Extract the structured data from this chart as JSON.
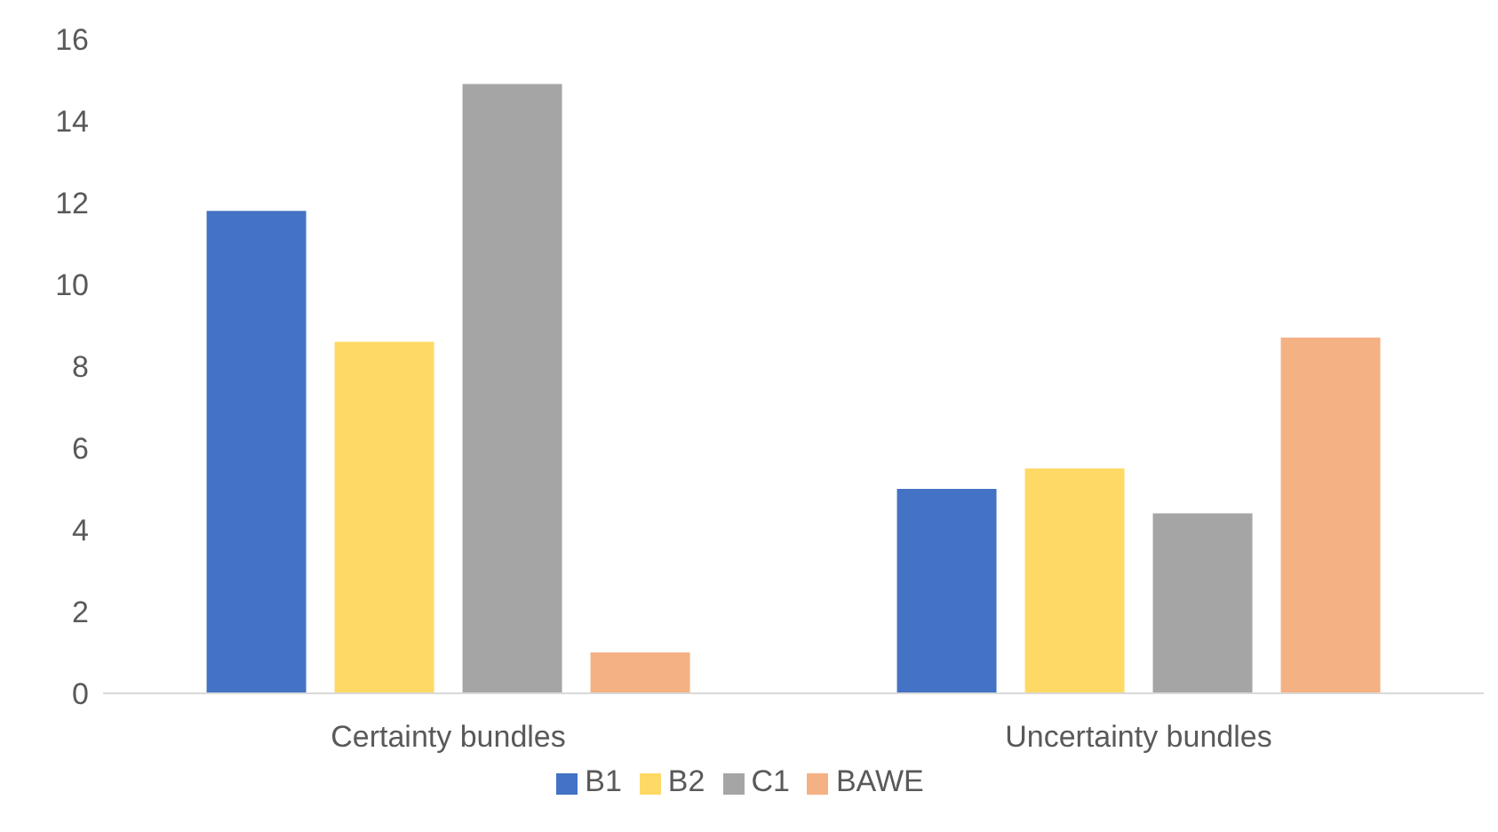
{
  "chart_data": {
    "type": "bar",
    "categories": [
      "Certainty bundles",
      "Uncertainty bundles"
    ],
    "series": [
      {
        "name": "B1",
        "color": "#4472c4",
        "values": [
          11.8,
          5.0
        ]
      },
      {
        "name": "B2",
        "color": "#ffd966",
        "values": [
          8.6,
          5.5
        ]
      },
      {
        "name": "C1",
        "color": "#a5a5a5",
        "values": [
          14.9,
          4.4
        ]
      },
      {
        "name": "BAWE",
        "color": "#f4b183",
        "values": [
          1.0,
          8.7
        ]
      }
    ],
    "ylim": [
      0,
      16
    ],
    "yticks": [
      0,
      2,
      4,
      6,
      8,
      10,
      12,
      14,
      16
    ],
    "grid": false,
    "legend": "bottom"
  }
}
